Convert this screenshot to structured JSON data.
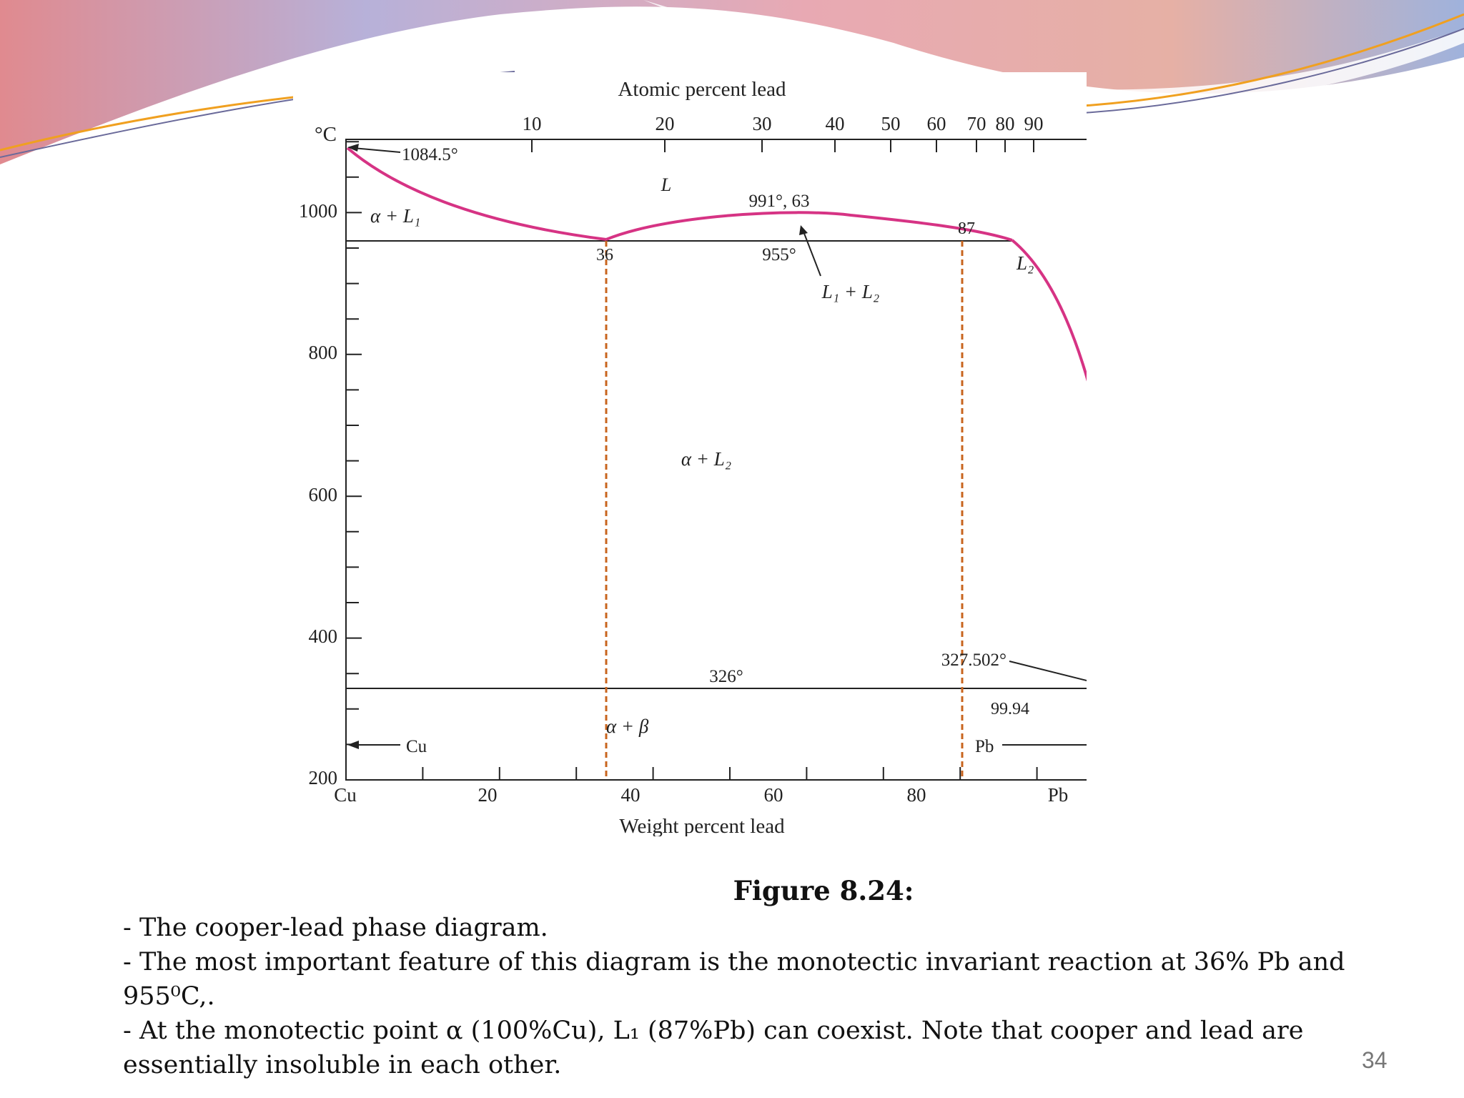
{
  "slide": {
    "figure_title": "Figure 8.24:",
    "caption_lines": [
      "- The cooper-lead phase diagram.",
      "- The most important feature of this diagram is the monotectic invariant reaction at 36% Pb and",
      "955⁰C,.",
      "- At the monotectic point α (100%Cu), L₁ (87%Pb) can coexist. Note that cooper and lead are",
      "essentially insoluble in each other."
    ],
    "page_number": "34"
  },
  "diagram": {
    "top_axis_title": "Atomic percent lead",
    "bottom_axis_title": "Weight percent lead",
    "temp_unit": "°C",
    "y_ticks": [
      "1000",
      "800",
      "600",
      "400",
      "200"
    ],
    "x_ticks_bottom": [
      "Cu",
      "20",
      "40",
      "60",
      "80",
      "Pb"
    ],
    "x_ticks_top": [
      "10",
      "20",
      "30",
      "40",
      "50",
      "60",
      "70",
      "80",
      "90"
    ],
    "labels": {
      "cu_melting": "1084.5°",
      "liquid": "L",
      "alpha_l1": "α + L₁",
      "max_point": "991°, 63",
      "comp_87": "87",
      "comp_36": "36",
      "monotectic_temp": "955°",
      "l1_l2": "L₁ + L₂",
      "l2": "L₂",
      "alpha_l2": "α + L₂",
      "pb_melting": "327.502°",
      "eutectic_temp": "326°",
      "comp_9994": "99.94",
      "alpha_beta": "α + β",
      "cu_arrow": "Cu",
      "pb_arrow": "Pb"
    },
    "colors": {
      "curve": "#d63384",
      "dashed": "#c8641e",
      "axis": "#222222"
    }
  }
}
